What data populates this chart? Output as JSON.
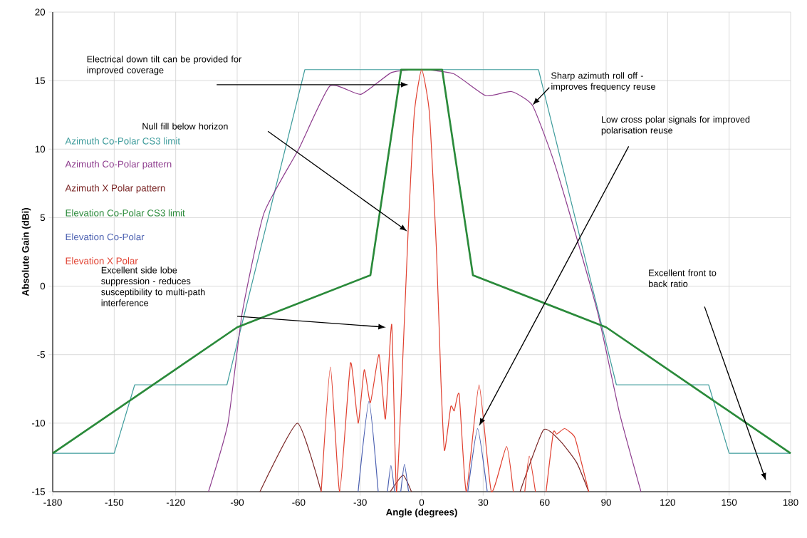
{
  "chart_data": {
    "type": "line",
    "xlabel": "Angle (degrees)",
    "ylabel": "Absolute Gain (dBi)",
    "xlim": [
      -180,
      180
    ],
    "ylim": [
      -15,
      20
    ],
    "xticks": [
      -180,
      -150,
      -120,
      -90,
      -60,
      -30,
      0,
      30,
      60,
      90,
      120,
      150,
      180
    ],
    "yticks": [
      -15,
      -10,
      -5,
      0,
      5,
      10,
      15,
      20
    ],
    "grid": true,
    "legend": "left",
    "series": [
      {
        "name": "Azimuth Co-Polar CS3 limit",
        "color": "#3e9c9c",
        "x": [
          -180,
          -150,
          -140,
          -95,
          -57,
          57,
          95,
          140,
          150,
          180
        ],
        "values": [
          -12.2,
          -12.2,
          -7.2,
          -7.2,
          15.8,
          15.8,
          -7.2,
          -7.2,
          -12.2,
          -12.2
        ]
      },
      {
        "name": "Azimuth Co-Polar pattern",
        "color": "#8e3d8e",
        "x": [
          -104,
          -94.5,
          -87.6,
          -77,
          -60,
          -44.8,
          -29.7,
          -14.6,
          0,
          15.6,
          31.3,
          43.8,
          54,
          63.6,
          72,
          86,
          96.6,
          107
        ],
        "values": [
          -15,
          -10,
          -2,
          5.3,
          10,
          14.6,
          14.0,
          15.6,
          15.8,
          15.5,
          13.9,
          14.2,
          13.2,
          9.5,
          5.4,
          -2,
          -9.3,
          -15
        ]
      },
      {
        "name": "Azimuth X Polar pattern",
        "color": "#7a2626",
        "x": [
          -78.9,
          -60.6,
          -49,
          null,
          -15.3,
          -9.1,
          -5,
          null,
          48,
          59.4,
          67.6,
          75.7,
          81.5
        ],
        "values": [
          -15,
          -10,
          -15,
          null,
          -15,
          -13.8,
          -15,
          null,
          -15,
          -10.5,
          -11.3,
          -12.9,
          -15
        ]
      },
      {
        "name": "Elevation Co-Polar CS3 limit",
        "color": "#2a8a3a",
        "x": [
          -180,
          -90,
          -25,
          -10,
          10,
          25,
          90,
          180
        ],
        "values": [
          -12.2,
          -3,
          0.8,
          15.8,
          15.8,
          0.8,
          -3,
          -12.2
        ]
      },
      {
        "name": "Elevation Co-Polar",
        "color": "#4a5fb0",
        "x": [
          -31,
          -25.7,
          -21.2,
          null,
          -16.7,
          -15,
          -13.2,
          null,
          -10.2,
          -8.4,
          -6.4,
          null,
          22.5,
          27.3,
          32
        ],
        "values": [
          -15,
          -8.4,
          -15,
          null,
          -15,
          -13.1,
          -15,
          null,
          -15,
          -13,
          -15,
          null,
          -15,
          -10.4,
          -15
        ]
      },
      {
        "name": "Elevation X Polar",
        "color": "#e04030",
        "x": [
          -49,
          -44.5,
          -40,
          -34.7,
          -31,
          -28,
          -25,
          -20.8,
          -17.7,
          -14.6,
          -12.3,
          -9.1,
          -6.6,
          -3.6,
          0,
          3.8,
          7.3,
          9.4,
          11.1,
          14.2,
          15.9,
          18.3,
          21.8,
          28,
          34,
          41.4,
          44.7,
          null,
          50.3,
          52.5,
          55.5,
          null,
          60.7,
          64.2,
          65.9,
          69.8,
          74.6,
          78,
          81.5
        ],
        "values": [
          -15,
          -5.9,
          -15,
          -5.6,
          -10,
          -6.1,
          -8.5,
          -5,
          -9.7,
          -2.8,
          -15,
          -4.9,
          4.0,
          12.6,
          15.8,
          12.6,
          2.3,
          -6.9,
          -12,
          -8.8,
          -9.1,
          -7.9,
          -15,
          -7.2,
          -15,
          -11.7,
          -15,
          null,
          -15,
          -12.4,
          -15,
          null,
          -15,
          -10.7,
          -10.8,
          -10.4,
          -11,
          -12.9,
          -15
        ]
      }
    ],
    "annotations": [
      "Electrical down tilt can be provided for improved coverage",
      {
        "text": "Sharp azimuth roll off - improves frequency reuse",
        "x": 54,
        "y": 13.2
      },
      "Null fill below horizon",
      "Low cross polar signals for improved polarisation reuse",
      "Excellent side lobe suppression - reduces susceptibility to multi-path interference",
      "Excellent front to back ratio"
    ]
  }
}
